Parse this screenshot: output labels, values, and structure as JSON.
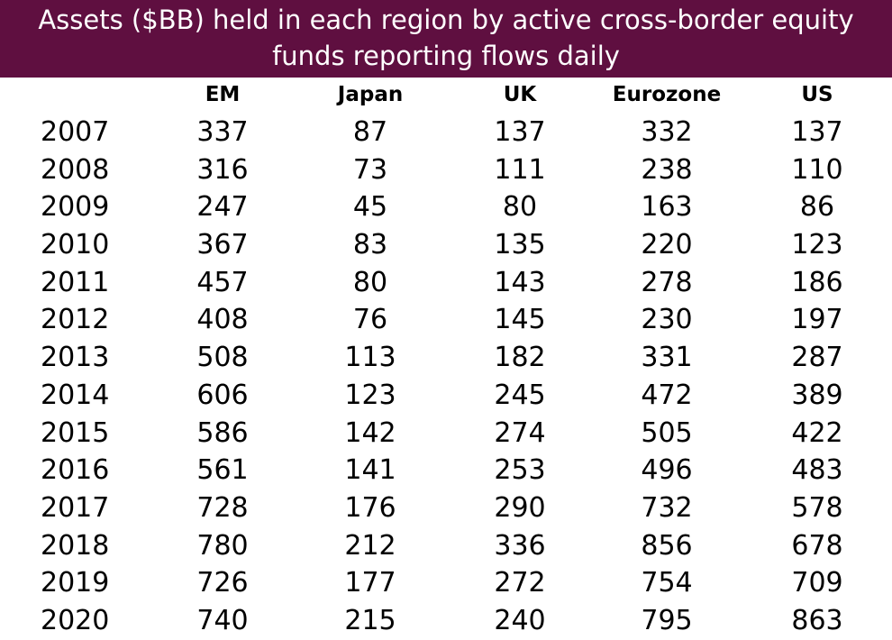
{
  "chart_data": {
    "type": "table",
    "title": "Assets ($BB) held in each region by active cross-border equity funds reporting flows daily",
    "columns": [
      "EM",
      "Japan",
      "UK",
      "Eurozone",
      "US"
    ],
    "rows": [
      {
        "year": "2007",
        "values": [
          "337",
          "87",
          "137",
          "332",
          "137"
        ]
      },
      {
        "year": "2008",
        "values": [
          "316",
          "73",
          "111",
          "238",
          "110"
        ]
      },
      {
        "year": "2009",
        "values": [
          "247",
          "45",
          "80",
          "163",
          "86"
        ]
      },
      {
        "year": "2010",
        "values": [
          "367",
          "83",
          "135",
          "220",
          "123"
        ]
      },
      {
        "year": "2011",
        "values": [
          "457",
          "80",
          "143",
          "278",
          "186"
        ]
      },
      {
        "year": "2012",
        "values": [
          "408",
          "76",
          "145",
          "230",
          "197"
        ]
      },
      {
        "year": "2013",
        "values": [
          "508",
          "113",
          "182",
          "331",
          "287"
        ]
      },
      {
        "year": "2014",
        "values": [
          "606",
          "123",
          "245",
          "472",
          "389"
        ]
      },
      {
        "year": "2015",
        "values": [
          "586",
          "142",
          "274",
          "505",
          "422"
        ]
      },
      {
        "year": "2016",
        "values": [
          "561",
          "141",
          "253",
          "496",
          "483"
        ]
      },
      {
        "year": "2017",
        "values": [
          "728",
          "176",
          "290",
          "732",
          "578"
        ]
      },
      {
        "year": "2018",
        "values": [
          "780",
          "212",
          "336",
          "856",
          "678"
        ]
      },
      {
        "year": "2019",
        "values": [
          "726",
          "177",
          "272",
          "754",
          "709"
        ]
      },
      {
        "year": "2020",
        "values": [
          "740",
          "215",
          "240",
          "795",
          "863"
        ]
      }
    ]
  },
  "colors": {
    "title_background": "#5f0f40",
    "title_text": "#ffffff",
    "body_text": "#000000"
  }
}
